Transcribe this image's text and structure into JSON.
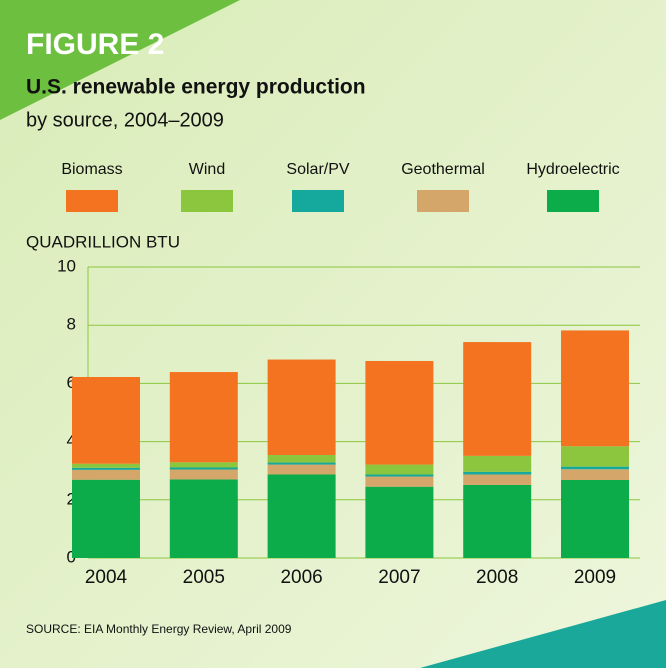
{
  "chart_data": {
    "type": "stacked_bar",
    "figure_label": "FIGURE 2",
    "title": "U.S. renewable energy production",
    "subtitle": "by source, 2004–2009",
    "y_label": "QUADRILLION BTU",
    "source": "SOURCE: EIA Monthly Energy Review, April 2009",
    "categories": [
      "2004",
      "2005",
      "2006",
      "2007",
      "2008",
      "2009"
    ],
    "series": [
      {
        "name": "Biomass",
        "color": "#f47321",
        "values": [
          2.98,
          3.1,
          3.28,
          3.56,
          3.91,
          3.98
        ]
      },
      {
        "name": "Wind",
        "color": "#8cc63f",
        "values": [
          0.14,
          0.18,
          0.26,
          0.34,
          0.55,
          0.7
        ]
      },
      {
        "name": "Solar/PV",
        "color": "#14a99c",
        "values": [
          0.07,
          0.07,
          0.07,
          0.07,
          0.09,
          0.09
        ]
      },
      {
        "name": "Geothermal",
        "color": "#d4a66a",
        "values": [
          0.34,
          0.34,
          0.34,
          0.35,
          0.36,
          0.37
        ]
      },
      {
        "name": "Hydroelectric",
        "color": "#0cac4b",
        "values": [
          2.69,
          2.7,
          2.87,
          2.45,
          2.51,
          2.68
        ]
      }
    ],
    "ylim": [
      0,
      10
    ],
    "yticks": [
      0,
      2,
      4,
      6,
      8,
      10
    ],
    "grid": true
  }
}
